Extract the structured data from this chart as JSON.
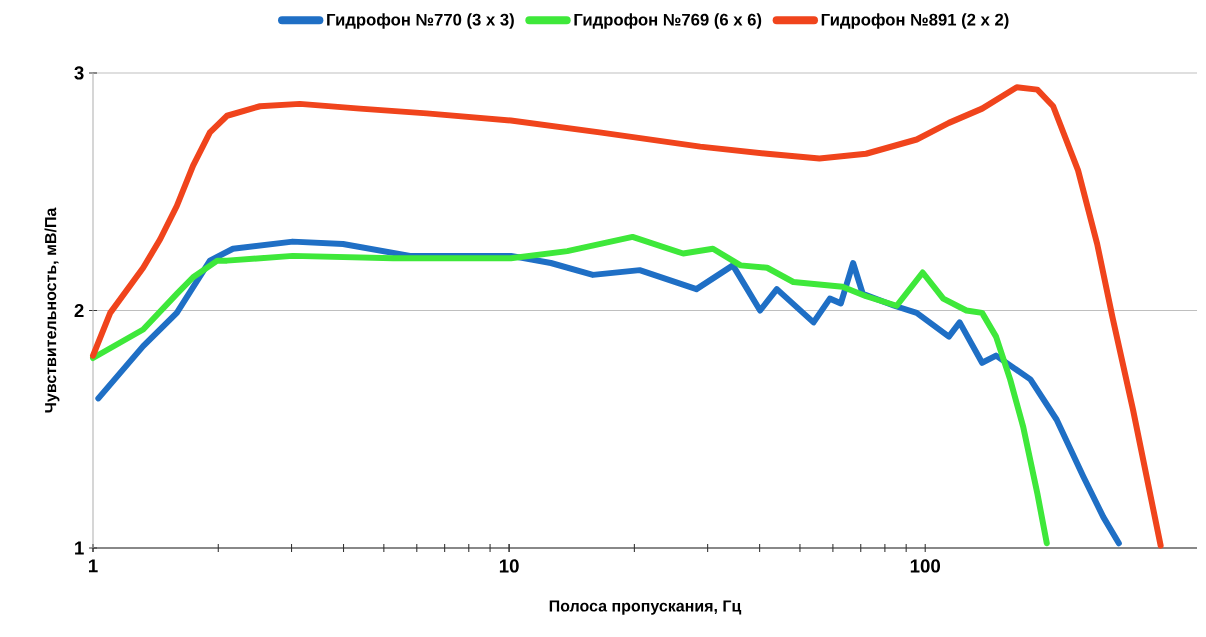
{
  "chart_data": {
    "type": "line",
    "xlabel": "Полоса пропускания, Гц",
    "ylabel": "Чувствительность, мВ/Па",
    "log": "x",
    "xlim": [
      1,
      450
    ],
    "xticks": [
      1,
      10,
      100
    ],
    "ylim": [
      1,
      3
    ],
    "yticks": [
      1,
      2,
      3
    ],
    "grid": "y",
    "legend": "top",
    "line_style": "solid",
    "series": [
      {
        "name": "Гидрофон №770 (3 x 3)",
        "color": "#1f6fc5",
        "x": [
          1.03,
          1.32,
          1.59,
          1.91,
          2.17,
          3.02,
          3.99,
          5.78,
          10.1,
          12.6,
          15.9,
          20.6,
          28.2,
          34.5,
          40.1,
          44.0,
          53.9,
          59.0,
          62.7,
          67.1,
          70.8,
          84.3,
          95.4,
          114,
          121,
          137,
          148,
          179,
          207,
          240,
          268,
          292
        ],
        "values": [
          1.63,
          1.85,
          1.99,
          2.21,
          2.26,
          2.29,
          2.28,
          2.23,
          2.23,
          2.2,
          2.15,
          2.17,
          2.09,
          2.19,
          2.0,
          2.09,
          1.95,
          2.05,
          2.03,
          2.2,
          2.07,
          2.02,
          1.99,
          1.89,
          1.95,
          1.78,
          1.81,
          1.71,
          1.54,
          1.3,
          1.13,
          1.02
        ]
      },
      {
        "name": "Гидрофон №769 (6 x 6)",
        "color": "#3ee83a",
        "x": [
          1,
          1.32,
          1.59,
          1.74,
          1.99,
          2.1,
          3.02,
          5.26,
          10.1,
          13.8,
          19.8,
          26.2,
          30.9,
          36.0,
          41.7,
          48.2,
          63.3,
          72.1,
          85.4,
          98.6,
          110.5,
          125.6,
          137,
          148,
          160,
          172,
          186,
          196
        ],
        "values": [
          1.8,
          1.92,
          2.07,
          2.14,
          2.21,
          2.21,
          2.23,
          2.22,
          2.22,
          2.25,
          2.31,
          2.24,
          2.26,
          2.19,
          2.18,
          2.12,
          2.1,
          2.06,
          2.02,
          2.16,
          2.05,
          2.0,
          1.99,
          1.89,
          1.71,
          1.51,
          1.23,
          1.02
        ]
      },
      {
        "name": "Гидрофон №891 (2 x 2)",
        "color": "#f0441c",
        "x": [
          1,
          1.1,
          1.32,
          1.45,
          1.59,
          1.74,
          1.91,
          2.1,
          2.52,
          3.14,
          4.38,
          6.34,
          10.1,
          16.5,
          28.8,
          41.7,
          55.7,
          72.1,
          95.4,
          114,
          137,
          166,
          186,
          203,
          233,
          259,
          282,
          316,
          368
        ],
        "values": [
          1.81,
          1.99,
          2.18,
          2.3,
          2.44,
          2.61,
          2.75,
          2.82,
          2.86,
          2.87,
          2.85,
          2.83,
          2.8,
          2.75,
          2.69,
          2.66,
          2.64,
          2.66,
          2.72,
          2.79,
          2.85,
          2.94,
          2.93,
          2.86,
          2.59,
          2.28,
          1.97,
          1.58,
          1.01
        ]
      }
    ]
  }
}
